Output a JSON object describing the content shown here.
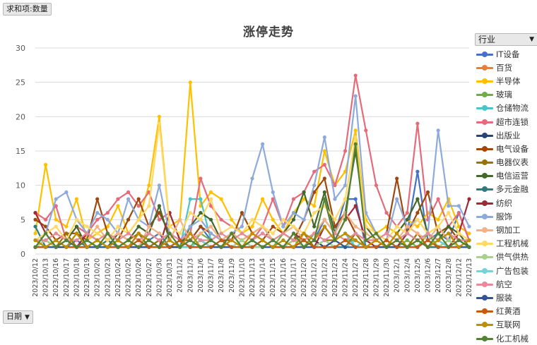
{
  "pivot": {
    "value_field": "求和项:数量",
    "axis_field": "日期",
    "legend_field": "行业"
  },
  "chart_data": {
    "type": "line",
    "title": "涨停走势",
    "xlabel": "",
    "ylabel": "",
    "ylim": [
      0,
      30
    ],
    "yticks": [
      0,
      5,
      10,
      15,
      20,
      25,
      30
    ],
    "grid": true,
    "legend_position": "right",
    "categories": [
      "2023/10/12",
      "2023/10/13",
      "2023/10/16",
      "2023/10/17",
      "2023/10/18",
      "2023/10/19",
      "2023/10/20",
      "2023/10/23",
      "2023/10/24",
      "2023/10/25",
      "2023/10/26",
      "2023/10/27",
      "2023/10/30",
      "2023/10/31",
      "2023/11/2",
      "2023/11/3",
      "2023/11/6",
      "2023/11/7",
      "2023/11/8",
      "2023/11/9",
      "2023/11/10",
      "2023/11/13",
      "2023/11/14",
      "2023/11/15",
      "2023/11/16",
      "2023/11/17",
      "2023/11/20",
      "2023/11/21",
      "2023/11/22",
      "2023/11/23",
      "2023/11/24",
      "2023/11/27",
      "2023/11/28",
      "2023/11/29",
      "2023/11/30",
      "2023/12/1",
      "2023/12/4",
      "2023/12/5",
      "2023/12/6",
      "2023/12/7",
      "2023/12/8",
      "2023/12/12",
      "2023/12/13"
    ],
    "series": [
      {
        "name": "IT设备",
        "color": "#4472c4",
        "values": [
          1,
          1,
          2,
          1,
          2,
          1,
          2,
          1,
          3,
          2,
          1,
          2,
          3,
          1,
          1,
          2,
          4,
          2,
          1,
          2,
          1,
          2,
          3,
          2,
          1,
          2,
          3,
          2,
          5,
          3,
          8,
          8,
          1,
          2,
          1,
          2,
          3,
          12,
          2,
          3,
          2,
          6,
          2
        ]
      },
      {
        "name": "百货",
        "color": "#ed7d31",
        "values": [
          2,
          1,
          1,
          2,
          1,
          1,
          1,
          2,
          1,
          2,
          1,
          1,
          2,
          1,
          1,
          1,
          2,
          1,
          1,
          1,
          2,
          1,
          1,
          2,
          1,
          1,
          2,
          1,
          1,
          2,
          1,
          2,
          1,
          1,
          2,
          1,
          1,
          2,
          1,
          1,
          2,
          1,
          1
        ]
      },
      {
        "name": "半导体",
        "color": "#ffc000",
        "values": [
          3,
          13,
          5,
          4,
          8,
          2,
          3,
          4,
          7,
          3,
          5,
          10,
          20,
          4,
          5,
          25,
          7,
          9,
          8,
          5,
          3,
          4,
          8,
          5,
          3,
          6,
          8,
          7,
          15,
          10,
          12,
          18,
          5,
          3,
          4,
          3,
          5,
          4,
          6,
          5,
          8,
          4,
          3
        ]
      },
      {
        "name": "玻璃",
        "color": "#70ad47",
        "values": [
          1,
          2,
          1,
          1,
          3,
          1,
          2,
          1,
          1,
          2,
          1,
          3,
          2,
          1,
          2,
          1,
          3,
          2,
          1,
          1,
          2,
          1,
          2,
          1,
          3,
          2,
          1,
          3,
          2,
          1,
          2,
          2,
          1,
          2,
          1,
          1,
          2,
          1,
          3,
          1,
          2,
          1,
          2
        ]
      },
      {
        "name": "仓储物流",
        "color": "#4bc4c9",
        "values": [
          1,
          1,
          2,
          1,
          1,
          2,
          1,
          1,
          2,
          1,
          1,
          2,
          1,
          2,
          1,
          8,
          8,
          2,
          1,
          1,
          2,
          1,
          1,
          2,
          1,
          1,
          2,
          1,
          1,
          2,
          3,
          1,
          2,
          1,
          1,
          2,
          1,
          1,
          2,
          1,
          1,
          2,
          1
        ]
      },
      {
        "name": "超市连锁",
        "color": "#e56b7c",
        "values": [
          6,
          5,
          7,
          2,
          4,
          3,
          5,
          6,
          8,
          9,
          7,
          9,
          5,
          6,
          2,
          3,
          11,
          7,
          5,
          4,
          3,
          2,
          4,
          8,
          4,
          8,
          9,
          12,
          13,
          10,
          15,
          26,
          18,
          10,
          6,
          4,
          6,
          19,
          5,
          8,
          4,
          6,
          2
        ]
      },
      {
        "name": "出版业",
        "color": "#264478",
        "values": [
          1,
          1,
          1,
          1,
          1,
          1,
          1,
          1,
          1,
          1,
          1,
          1,
          2,
          1,
          1,
          1,
          1,
          1,
          2,
          1,
          1,
          1,
          1,
          1,
          1,
          1,
          1,
          2,
          1,
          1,
          1,
          2,
          1,
          1,
          1,
          1,
          1,
          2,
          1,
          1,
          1,
          1,
          2
        ]
      },
      {
        "name": "电气设备",
        "color": "#9e480e",
        "values": [
          5,
          4,
          2,
          3,
          3,
          2,
          8,
          3,
          2,
          5,
          8,
          4,
          6,
          3,
          2,
          2,
          4,
          3,
          2,
          2,
          6,
          3,
          2,
          4,
          3,
          2,
          5,
          9,
          11,
          4,
          6,
          3,
          2,
          2,
          3,
          11,
          3,
          6,
          9,
          3,
          4,
          2,
          2
        ]
      },
      {
        "name": "电器仪表",
        "color": "#997300",
        "values": [
          1,
          2,
          1,
          3,
          1,
          2,
          1,
          2,
          1,
          2,
          3,
          1,
          2,
          1,
          2,
          1,
          1,
          2,
          1,
          3,
          1,
          2,
          1,
          2,
          1,
          2,
          3,
          1,
          2,
          2,
          1,
          3,
          1,
          2,
          1,
          2,
          1,
          3,
          1,
          2,
          1,
          2,
          1
        ]
      },
      {
        "name": "电信运营",
        "color": "#43682b",
        "values": [
          1,
          2,
          1,
          2,
          4,
          1,
          2,
          1,
          3,
          2,
          4,
          3,
          7,
          2,
          1,
          4,
          6,
          5,
          2,
          3,
          2,
          3,
          4,
          2,
          3,
          5,
          9,
          4,
          9,
          3,
          6,
          15,
          4,
          2,
          1,
          3,
          5,
          8,
          3,
          2,
          4,
          3,
          1
        ]
      },
      {
        "name": "多元金融",
        "color": "#2c7d7d",
        "values": [
          4,
          1,
          2,
          1,
          1,
          2,
          1,
          2,
          1,
          1,
          2,
          1,
          1,
          2,
          1,
          1,
          2,
          1,
          1,
          2,
          1,
          1,
          2,
          1,
          1,
          2,
          1,
          1,
          2,
          1,
          1,
          2,
          1,
          1,
          2,
          1,
          1,
          2,
          1,
          1,
          2,
          1,
          1
        ]
      },
      {
        "name": "纺织",
        "color": "#9e2a38",
        "values": [
          6,
          3,
          1,
          2,
          1,
          3,
          2,
          1,
          2,
          1,
          3,
          2,
          1,
          6,
          2,
          1,
          2,
          1,
          2,
          1,
          1,
          2,
          1,
          2,
          1,
          3,
          2,
          1,
          4,
          2,
          5,
          7,
          2,
          1,
          2,
          1,
          3,
          2,
          1,
          2,
          1,
          3,
          8
        ]
      },
      {
        "name": "服饰",
        "color": "#8eaadb",
        "values": [
          2,
          3,
          8,
          9,
          5,
          3,
          6,
          5,
          3,
          8,
          5,
          4,
          10,
          3,
          2,
          4,
          5,
          3,
          2,
          3,
          4,
          11,
          16,
          9,
          4,
          6,
          5,
          10,
          17,
          8,
          10,
          23,
          6,
          3,
          2,
          8,
          4,
          5,
          3,
          18,
          7,
          7,
          4
        ]
      },
      {
        "name": "钢加工",
        "color": "#f4b183",
        "values": [
          1,
          2,
          3,
          2,
          1,
          2,
          4,
          2,
          3,
          2,
          1,
          4,
          3,
          2,
          5,
          2,
          3,
          4,
          2,
          3,
          2,
          3,
          4,
          2,
          3,
          4,
          2,
          3,
          5,
          3,
          6,
          4,
          3,
          2,
          3,
          2,
          4,
          3,
          2,
          4,
          2,
          3,
          2
        ]
      },
      {
        "name": "工程机械",
        "color": "#ffd966",
        "values": [
          2,
          3,
          4,
          2,
          5,
          4,
          3,
          2,
          4,
          3,
          5,
          7,
          19,
          4,
          3,
          6,
          5,
          8,
          3,
          4,
          3,
          5,
          4,
          3,
          5,
          4,
          3,
          6,
          7,
          5,
          8,
          17,
          4,
          3,
          2,
          4,
          3,
          5,
          3,
          4,
          6,
          3,
          2
        ]
      },
      {
        "name": "供气供热",
        "color": "#a9d18e",
        "values": [
          1,
          2,
          1,
          2,
          1,
          1,
          2,
          1,
          2,
          1,
          2,
          1,
          1,
          2,
          1,
          2,
          1,
          1,
          2,
          1,
          2,
          1,
          1,
          2,
          1,
          2,
          1,
          1,
          2,
          1,
          2,
          1,
          1,
          2,
          1,
          2,
          1,
          1,
          2,
          1,
          2,
          1,
          1
        ]
      },
      {
        "name": "广告包装",
        "color": "#6fd5d9",
        "values": [
          2,
          1,
          1,
          2,
          1,
          2,
          1,
          1,
          2,
          1,
          2,
          1,
          1,
          2,
          1,
          1,
          2,
          1,
          2,
          1,
          1,
          2,
          1,
          1,
          2,
          1,
          2,
          1,
          1,
          2,
          1,
          2,
          1,
          1,
          2,
          1,
          1,
          2,
          1,
          2,
          1,
          1,
          2
        ]
      },
      {
        "name": "航空",
        "color": "#e48b9c",
        "values": [
          2,
          2,
          3,
          2,
          2,
          3,
          2,
          3,
          2,
          3,
          2,
          3,
          2,
          3,
          2,
          3,
          2,
          2,
          3,
          2,
          3,
          2,
          3,
          2,
          3,
          2,
          2,
          3,
          2,
          3,
          2,
          3,
          2,
          2,
          3,
          2,
          3,
          2,
          3,
          2,
          3,
          2,
          2
        ]
      },
      {
        "name": "服装",
        "color": "#2f5597",
        "values": [
          1,
          1,
          1,
          2,
          1,
          1,
          1,
          1,
          2,
          1,
          1,
          1,
          1,
          1,
          2,
          1,
          1,
          1,
          1,
          1,
          1,
          2,
          1,
          1,
          1,
          1,
          1,
          1,
          1,
          2,
          1,
          1,
          1,
          1,
          1,
          1,
          1,
          1,
          2,
          1,
          1,
          1,
          1
        ]
      },
      {
        "name": "红黄酒",
        "color": "#c55a11",
        "values": [
          1,
          1,
          2,
          1,
          1,
          1,
          2,
          1,
          1,
          1,
          2,
          1,
          1,
          1,
          2,
          1,
          1,
          1,
          2,
          1,
          1,
          1,
          2,
          1,
          1,
          1,
          2,
          1,
          1,
          1,
          2,
          1,
          1,
          1,
          2,
          1,
          1,
          1,
          2,
          1,
          1,
          1,
          2
        ]
      },
      {
        "name": "互联网",
        "color": "#bf8f00",
        "values": [
          2,
          1,
          2,
          1,
          3,
          1,
          2,
          1,
          2,
          1,
          3,
          2,
          1,
          2,
          1,
          3,
          1,
          2,
          1,
          2,
          1,
          3,
          2,
          1,
          2,
          1,
          3,
          2,
          4,
          2,
          3,
          2,
          1,
          2,
          1,
          3,
          1,
          2,
          1,
          2,
          3,
          1,
          2
        ]
      },
      {
        "name": "化工机械",
        "color": "#548235",
        "values": [
          1,
          3,
          1,
          2,
          1,
          2,
          1,
          3,
          1,
          2,
          1,
          2,
          1,
          3,
          1,
          2,
          1,
          2,
          1,
          3,
          1,
          2,
          1,
          2,
          1,
          3,
          1,
          2,
          8,
          2,
          5,
          16,
          2,
          3,
          1,
          2,
          1,
          2,
          1,
          3,
          1,
          2,
          1
        ]
      }
    ]
  },
  "legend_labels": [
    "IT设备",
    "百货",
    "半导体",
    "玻璃",
    "仓储物流",
    "超市连锁",
    "出版业",
    "电气设备",
    "电器仪表",
    "电信运营",
    "多元金融",
    "纺织",
    "服饰",
    "钢加工",
    "工程机械",
    "供气供热",
    "广告包装",
    "航空",
    "服装",
    "红黄酒",
    "互联网",
    "化工机械"
  ],
  "legend_colors": [
    "#4472c4",
    "#ed7d31",
    "#ffc000",
    "#70ad47",
    "#4bc4c9",
    "#e56b7c",
    "#264478",
    "#9e480e",
    "#997300",
    "#43682b",
    "#2c7d7d",
    "#9e2a38",
    "#8eaadb",
    "#f4b183",
    "#ffd966",
    "#a9d18e",
    "#6fd5d9",
    "#e48b9c",
    "#2f5597",
    "#c55a11",
    "#bf8f00",
    "#548235"
  ]
}
